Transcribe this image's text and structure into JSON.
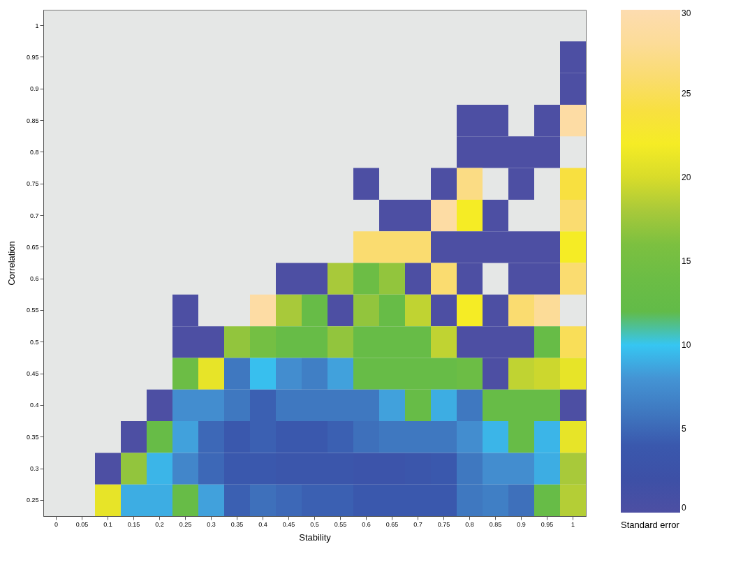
{
  "chart_data": {
    "type": "heatmap",
    "xlabel": "Stability",
    "ylabel": "Correlation",
    "clabel": "Standard error",
    "categories": [
      "0",
      "0.05",
      "0.1",
      "0.15",
      "0.2",
      "0.25",
      "0.3",
      "0.35",
      "0.4",
      "0.45",
      "0.5",
      "0.55",
      "0.6",
      "0.65",
      "0.7",
      "0.75",
      "0.8",
      "0.85",
      "0.9",
      "0.95",
      "1"
    ],
    "y_categories": [
      "1",
      "0.95",
      "0.9",
      "0.85",
      "0.8",
      "0.75",
      "0.7",
      "0.65",
      "0.6",
      "0.55",
      "0.5",
      "0.45",
      "0.4",
      "0.35",
      "0.3",
      "0.25"
    ],
    "clim": [
      0,
      30
    ],
    "cticks": [
      0,
      5,
      10,
      15,
      20,
      25,
      30
    ],
    "cells": [
      [
        null,
        null,
        null,
        null,
        null,
        null,
        null,
        null,
        null,
        null,
        null,
        null,
        null,
        null,
        null,
        null,
        null,
        null,
        null,
        null,
        null
      ],
      [
        null,
        null,
        null,
        null,
        null,
        null,
        null,
        null,
        null,
        null,
        null,
        null,
        null,
        null,
        null,
        null,
        null,
        null,
        null,
        null,
        0
      ],
      [
        null,
        null,
        null,
        null,
        null,
        null,
        null,
        null,
        null,
        null,
        null,
        null,
        null,
        null,
        null,
        null,
        null,
        null,
        null,
        null,
        0
      ],
      [
        null,
        null,
        null,
        null,
        null,
        null,
        null,
        null,
        null,
        null,
        null,
        null,
        null,
        null,
        null,
        null,
        0,
        0,
        null,
        0,
        29
      ],
      [
        null,
        null,
        null,
        null,
        null,
        null,
        null,
        null,
        null,
        null,
        null,
        null,
        null,
        null,
        null,
        null,
        0,
        0,
        0,
        0,
        null
      ],
      [
        null,
        null,
        null,
        null,
        null,
        null,
        null,
        null,
        null,
        null,
        null,
        null,
        0,
        null,
        null,
        0,
        27,
        null,
        0,
        null,
        24
      ],
      [
        null,
        null,
        null,
        null,
        null,
        null,
        null,
        null,
        null,
        null,
        null,
        null,
        null,
        0,
        0,
        29,
        22,
        0,
        null,
        null,
        26
      ],
      [
        null,
        null,
        null,
        null,
        null,
        null,
        null,
        null,
        null,
        null,
        null,
        null,
        26,
        26,
        26,
        0,
        0,
        0,
        0,
        0,
        22
      ],
      [
        null,
        null,
        null,
        null,
        null,
        null,
        null,
        null,
        null,
        0,
        0,
        18,
        14,
        17,
        0,
        26,
        0,
        null,
        0,
        0,
        26
      ],
      [
        null,
        null,
        null,
        null,
        null,
        0,
        null,
        null,
        29,
        18,
        13,
        0,
        17,
        13,
        19,
        0,
        22,
        0,
        26,
        28,
        null
      ],
      [
        null,
        null,
        null,
        null,
        null,
        0,
        0,
        17,
        15,
        13,
        13,
        17,
        13,
        13,
        13,
        19,
        0,
        0,
        0,
        13,
        25
      ],
      [
        null,
        null,
        null,
        null,
        null,
        14,
        21,
        6,
        9.7,
        7.5,
        6.5,
        8.5,
        13,
        13,
        13,
        13,
        14,
        0,
        19,
        19.5,
        21
      ],
      [
        null,
        null,
        null,
        null,
        0,
        7.5,
        7.5,
        6,
        4.5,
        6,
        6,
        6,
        6,
        8.5,
        13,
        9,
        6,
        13,
        13,
        13,
        0
      ],
      [
        null,
        null,
        null,
        0,
        13,
        8.5,
        5,
        4,
        4.5,
        4,
        4,
        4.5,
        5.5,
        6,
        6,
        6,
        7.5,
        9.3,
        13,
        9.3,
        21
      ],
      [
        null,
        null,
        0,
        17,
        9.3,
        7,
        5,
        4,
        4,
        3.5,
        3.5,
        3.5,
        3,
        3,
        3.5,
        4,
        6,
        7.5,
        7.5,
        9,
        18
      ],
      [
        null,
        null,
        21,
        9,
        9,
        13,
        8.5,
        4.5,
        5.5,
        5,
        4.5,
        4.5,
        4,
        4,
        4,
        4,
        6,
        6.5,
        5.5,
        13,
        18.5
      ]
    ]
  }
}
